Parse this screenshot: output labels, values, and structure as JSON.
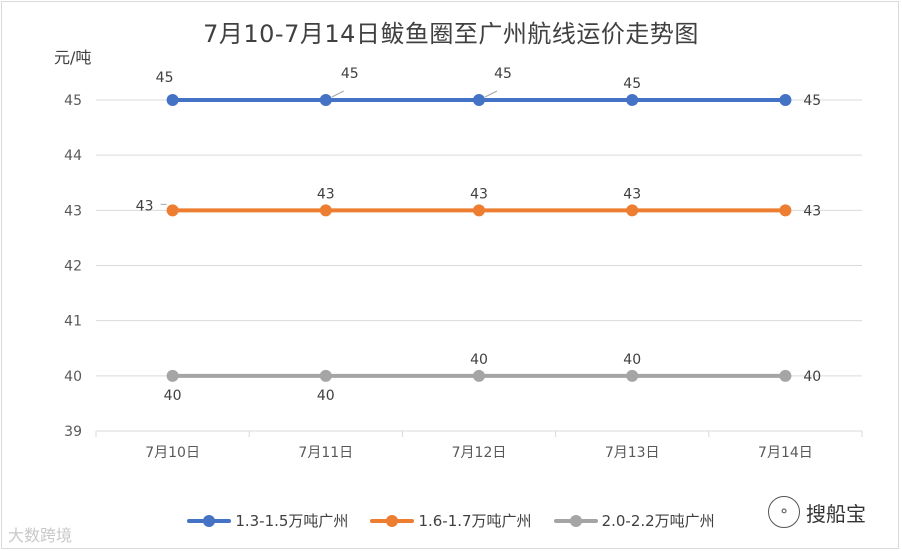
{
  "chart_data": {
    "type": "line",
    "title": "7月10-7月14日鲅鱼圈至广州航线运价走势图",
    "ylabel": "元/吨",
    "xlabel": "",
    "categories": [
      "7月10日",
      "7月11日",
      "7月12日",
      "7月13日",
      "7月14日"
    ],
    "ylim": [
      39,
      45
    ],
    "yticks": [
      39,
      40,
      41,
      42,
      43,
      44,
      45
    ],
    "grid": true,
    "legend": "bottom",
    "series": [
      {
        "name": "1.3-1.5万吨广州",
        "color": "#4472C4",
        "values": [
          45,
          45,
          45,
          45,
          45
        ]
      },
      {
        "name": "1.6-1.7万吨广州",
        "color": "#ED7D31",
        "values": [
          43,
          43,
          43,
          43,
          43
        ]
      },
      {
        "name": "2.0-2.2万吨广州",
        "color": "#A5A5A5",
        "values": [
          40,
          40,
          40,
          40,
          40
        ]
      }
    ]
  },
  "watermarks": {
    "left": "大数跨境",
    "right": "搜船宝",
    "right_icon": "wechat-icon"
  }
}
